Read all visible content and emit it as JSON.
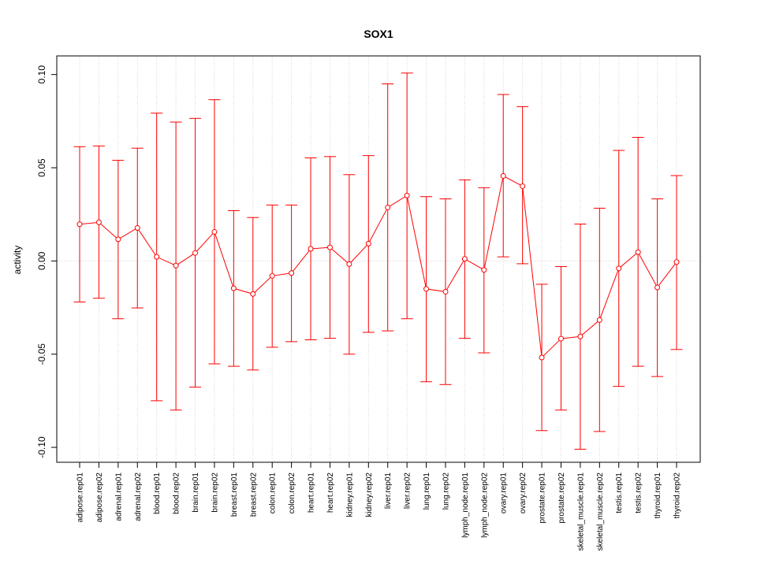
{
  "chart_data": {
    "type": "line",
    "title": "SOX1",
    "xlabel": "",
    "ylabel": "activity",
    "ylim": [
      -0.108,
      0.11
    ],
    "yticks": [
      0.1,
      0.05,
      0.0,
      -0.05,
      -0.1
    ],
    "ytick_labels": [
      "0.10",
      "0.05",
      "0.00",
      "-0.05",
      "-0.10"
    ],
    "grid": true,
    "color": "#ff0000",
    "grid_color": "#d3d3d3",
    "categories": [
      "adipose.rep01",
      "adipose.rep02",
      "adrenal.rep01",
      "adrenal.rep02",
      "blood.rep01",
      "blood.rep02",
      "brain.rep01",
      "brain.rep02",
      "breast.rep01",
      "breast.rep02",
      "colon.rep01",
      "colon.rep02",
      "heart.rep01",
      "heart.rep02",
      "kidney.rep01",
      "kidney.rep02",
      "liver.rep01",
      "liver.rep02",
      "lung.rep01",
      "lung.rep02",
      "lymph_node.rep01",
      "lymph_node.rep02",
      "ovary.rep01",
      "ovary.rep02",
      "prostate.rep01",
      "prostate.rep02",
      "skeletal_muscle.rep01",
      "skeletal_muscle.rep02",
      "testis.rep01",
      "testis.rep02",
      "thyroid.rep01",
      "thyroid.rep02"
    ],
    "values": [
      0.0197,
      0.0207,
      0.0116,
      0.0177,
      0.0022,
      -0.0025,
      0.0043,
      0.0156,
      -0.0147,
      -0.0177,
      -0.008,
      -0.0065,
      0.0065,
      0.0073,
      -0.0017,
      0.0093,
      0.0287,
      0.0351,
      -0.015,
      -0.0165,
      0.0011,
      -0.0048,
      0.0456,
      0.0401,
      -0.0518,
      -0.0417,
      -0.0405,
      -0.0317,
      -0.004,
      0.0047,
      -0.0142,
      -0.0006
    ],
    "upper": [
      0.0613,
      0.0617,
      0.054,
      0.0605,
      0.0793,
      0.0745,
      0.0765,
      0.0865,
      0.027,
      0.0233,
      0.03,
      0.03,
      0.0553,
      0.056,
      0.0463,
      0.0565,
      0.095,
      0.1008,
      0.0345,
      0.0333,
      0.0435,
      0.0393,
      0.0893,
      0.0828,
      -0.0125,
      -0.003,
      0.0198,
      0.0283,
      0.0593,
      0.0663,
      0.0333,
      0.0458
    ],
    "lower": [
      -0.022,
      -0.02,
      -0.031,
      -0.0252,
      -0.075,
      -0.08,
      -0.0677,
      -0.0552,
      -0.0565,
      -0.0585,
      -0.0463,
      -0.0433,
      -0.0423,
      -0.0415,
      -0.05,
      -0.0383,
      -0.0375,
      -0.031,
      -0.0648,
      -0.0663,
      -0.0415,
      -0.0493,
      0.0022,
      -0.0015,
      -0.091,
      -0.08,
      -0.101,
      -0.0915,
      -0.0673,
      -0.0565,
      -0.062,
      -0.0475
    ]
  }
}
